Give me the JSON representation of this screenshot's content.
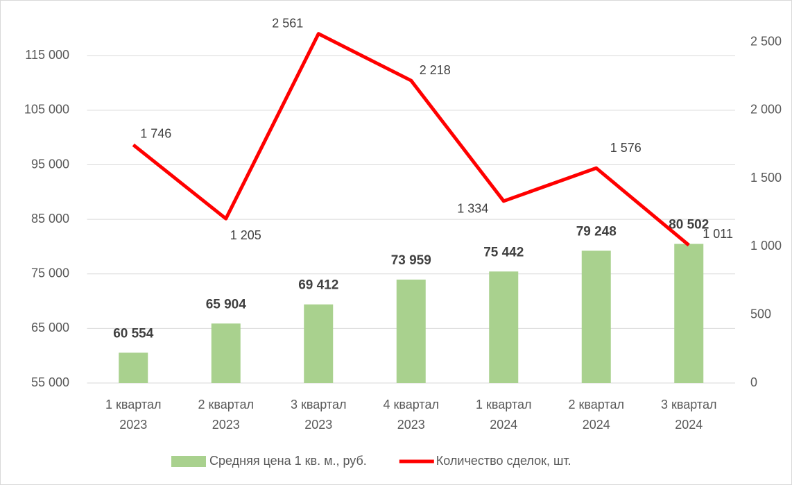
{
  "chart_data": {
    "type": "bar-line",
    "categories": [
      [
        "1 квартал",
        "2023"
      ],
      [
        "2 квартал",
        "2023"
      ],
      [
        "3 квартал",
        "2023"
      ],
      [
        "4 квартал",
        "2023"
      ],
      [
        "1 квартал",
        "2024"
      ],
      [
        "2 квартал",
        "2024"
      ],
      [
        "3 квартал",
        "2024"
      ]
    ],
    "series": [
      {
        "name": "Средняя цена 1 кв. м., руб.",
        "type": "bar",
        "color": "#a9d18e",
        "axis": "y",
        "values": [
          60554,
          65904,
          69412,
          73959,
          75442,
          79248,
          80502
        ],
        "value_labels": [
          "60 554",
          "65 904",
          "69 412",
          "73 959",
          "75 442",
          "79 248",
          "80 502"
        ]
      },
      {
        "name": "Количество сделок, шт.",
        "type": "line",
        "color": "#ff0000",
        "axis": "y2",
        "values": [
          1746,
          1205,
          2561,
          2218,
          1334,
          1576,
          1011
        ],
        "value_labels": [
          "1 746",
          "1 205",
          "2 561",
          "2 218",
          "1 334",
          "1 576",
          "1 011"
        ]
      }
    ],
    "ylim": [
      55000,
      120000
    ],
    "yticks": [
      {
        "value": 55000,
        "label": "55 000"
      },
      {
        "value": 65000,
        "label": "65 000"
      },
      {
        "value": 75000,
        "label": "75 000"
      },
      {
        "value": 85000,
        "label": "85 000"
      },
      {
        "value": 95000,
        "label": "95 000"
      },
      {
        "value": 105000,
        "label": "105 000"
      },
      {
        "value": 115000,
        "label": "115 000"
      }
    ],
    "y2lim": [
      0,
      2600
    ],
    "y2ticks": [
      0,
      500,
      {
        "value": 1000,
        "label": "1 000"
      },
      {
        "value": 1500,
        "label": "1 500"
      },
      {
        "value": 2000,
        "label": "2 000"
      },
      {
        "value": 2500,
        "label": "2 500"
      }
    ],
    "grid": true,
    "legend": "bottom"
  }
}
